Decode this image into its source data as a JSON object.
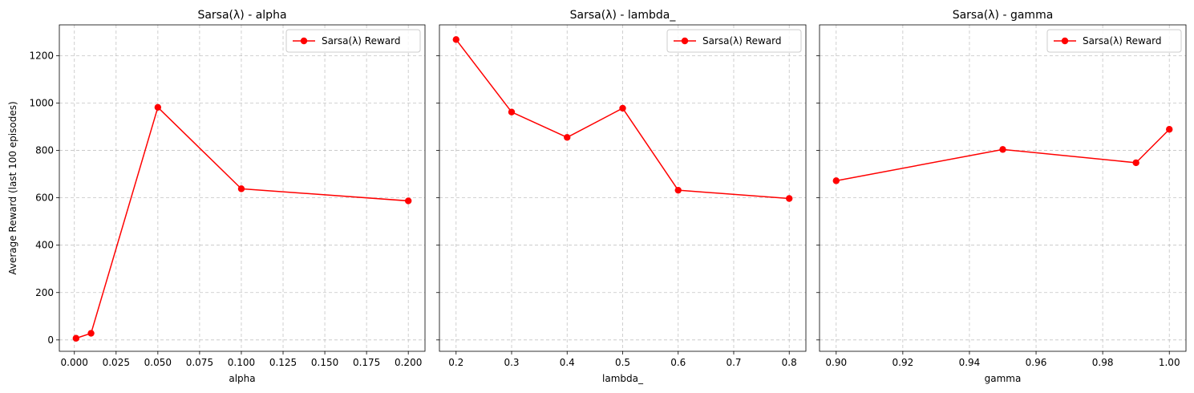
{
  "chart_data": [
    {
      "type": "line",
      "title": "Sarsa(λ) - alpha",
      "xlabel": "alpha",
      "ylabel": "Average Reward (last 100 episodes)",
      "x": [
        0.001,
        0.01,
        0.05,
        0.1,
        0.2
      ],
      "series": [
        {
          "name": "Sarsa(λ) Reward",
          "color": "#ff0000",
          "marker": "circle",
          "values": [
            7,
            28,
            982,
            638,
            587
          ]
        }
      ],
      "xlim": [
        -0.009,
        0.21
      ],
      "ylim": [
        -48,
        1330
      ],
      "xticks": [
        0.0,
        0.025,
        0.05,
        0.075,
        0.1,
        0.125,
        0.15,
        0.175,
        0.2
      ],
      "xtick_labels": [
        "0.000",
        "0.025",
        "0.050",
        "0.075",
        "0.100",
        "0.125",
        "0.150",
        "0.175",
        "0.200"
      ],
      "yticks": [
        0,
        200,
        400,
        600,
        800,
        1000,
        1200
      ],
      "ytick_labels": [
        "0",
        "200",
        "400",
        "600",
        "800",
        "1000",
        "1200"
      ],
      "show_ytick_labels": true,
      "grid": true,
      "legend": "upper right"
    },
    {
      "type": "line",
      "title": "Sarsa(λ) - lambda_",
      "xlabel": "lambda_",
      "ylabel": "",
      "x": [
        0.2,
        0.3,
        0.4,
        0.5,
        0.6,
        0.8
      ],
      "series": [
        {
          "name": "Sarsa(λ) Reward",
          "color": "#ff0000",
          "marker": "circle",
          "values": [
            1268,
            962,
            855,
            978,
            632,
            597
          ]
        }
      ],
      "xlim": [
        0.17,
        0.83
      ],
      "ylim": [
        -48,
        1330
      ],
      "xticks": [
        0.2,
        0.3,
        0.4,
        0.5,
        0.6,
        0.7,
        0.8
      ],
      "xtick_labels": [
        "0.2",
        "0.3",
        "0.4",
        "0.5",
        "0.6",
        "0.7",
        "0.8"
      ],
      "yticks": [
        0,
        200,
        400,
        600,
        800,
        1000,
        1200
      ],
      "ytick_labels": [
        "",
        "",
        "",
        "",
        "",
        "",
        ""
      ],
      "show_ytick_labels": false,
      "grid": true,
      "legend": "upper right"
    },
    {
      "type": "line",
      "title": "Sarsa(λ) - gamma",
      "xlabel": "gamma",
      "ylabel": "",
      "x": [
        0.9,
        0.95,
        0.99,
        1.0
      ],
      "series": [
        {
          "name": "Sarsa(λ) Reward",
          "color": "#ff0000",
          "marker": "circle",
          "values": [
            672,
            804,
            748,
            889
          ]
        }
      ],
      "xlim": [
        0.895,
        1.005
      ],
      "ylim": [
        -48,
        1330
      ],
      "xticks": [
        0.9,
        0.92,
        0.94,
        0.96,
        0.98,
        1.0
      ],
      "xtick_labels": [
        "0.90",
        "0.92",
        "0.94",
        "0.96",
        "0.98",
        "1.00"
      ],
      "yticks": [
        0,
        200,
        400,
        600,
        800,
        1000,
        1200
      ],
      "ytick_labels": [
        "",
        "",
        "",
        "",
        "",
        "",
        ""
      ],
      "show_ytick_labels": false,
      "grid": true,
      "legend": "upper right"
    }
  ]
}
